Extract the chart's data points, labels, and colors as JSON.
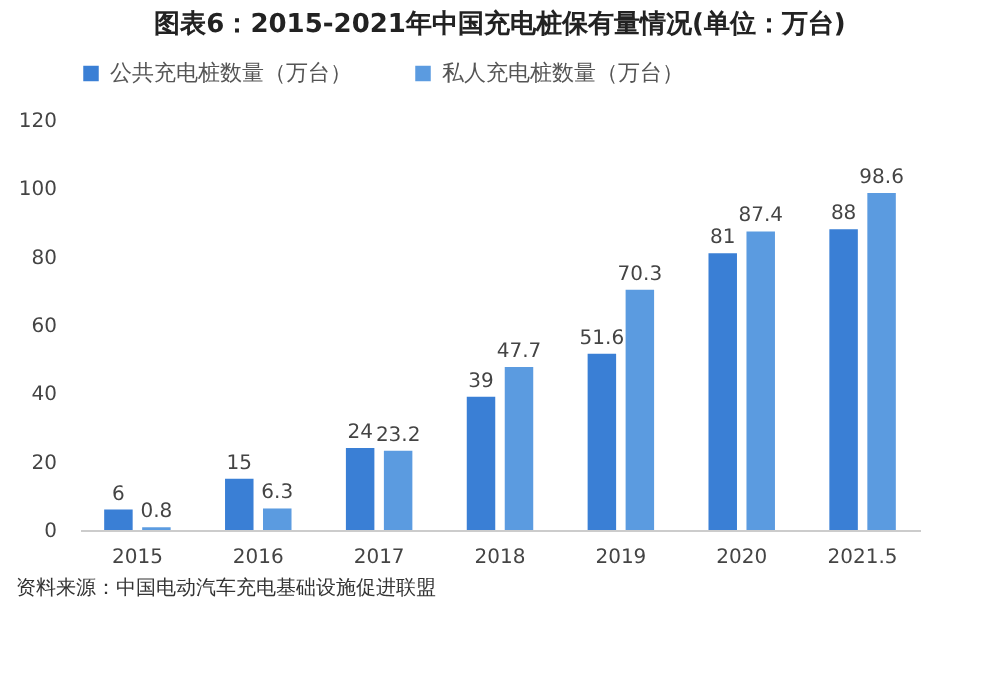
{
  "chart_data": {
    "type": "bar",
    "title": "图表6：2015-2021年中国充电桩保有量情况(单位：万台)",
    "categories": [
      "2015",
      "2016",
      "2017",
      "2018",
      "2019",
      "2020",
      "2021.5"
    ],
    "series": [
      {
        "name": "公共充电桩数量（万台）",
        "color": "#3a7fd5",
        "values": [
          6,
          15,
          24,
          39,
          51.6,
          81,
          88
        ]
      },
      {
        "name": "私人充电桩数量（万台）",
        "color": "#5b9be0",
        "values": [
          0.8,
          6.3,
          23.2,
          47.7,
          70.3,
          87.4,
          98.6
        ]
      }
    ],
    "ylim": [
      0,
      120
    ],
    "yticks": [
      0,
      20,
      40,
      60,
      80,
      100,
      120
    ],
    "grid": false,
    "legend": "top",
    "data_labels": true,
    "annotations": [
      "资料来源：中国电动汽车充电基础设施促进联盟"
    ]
  }
}
